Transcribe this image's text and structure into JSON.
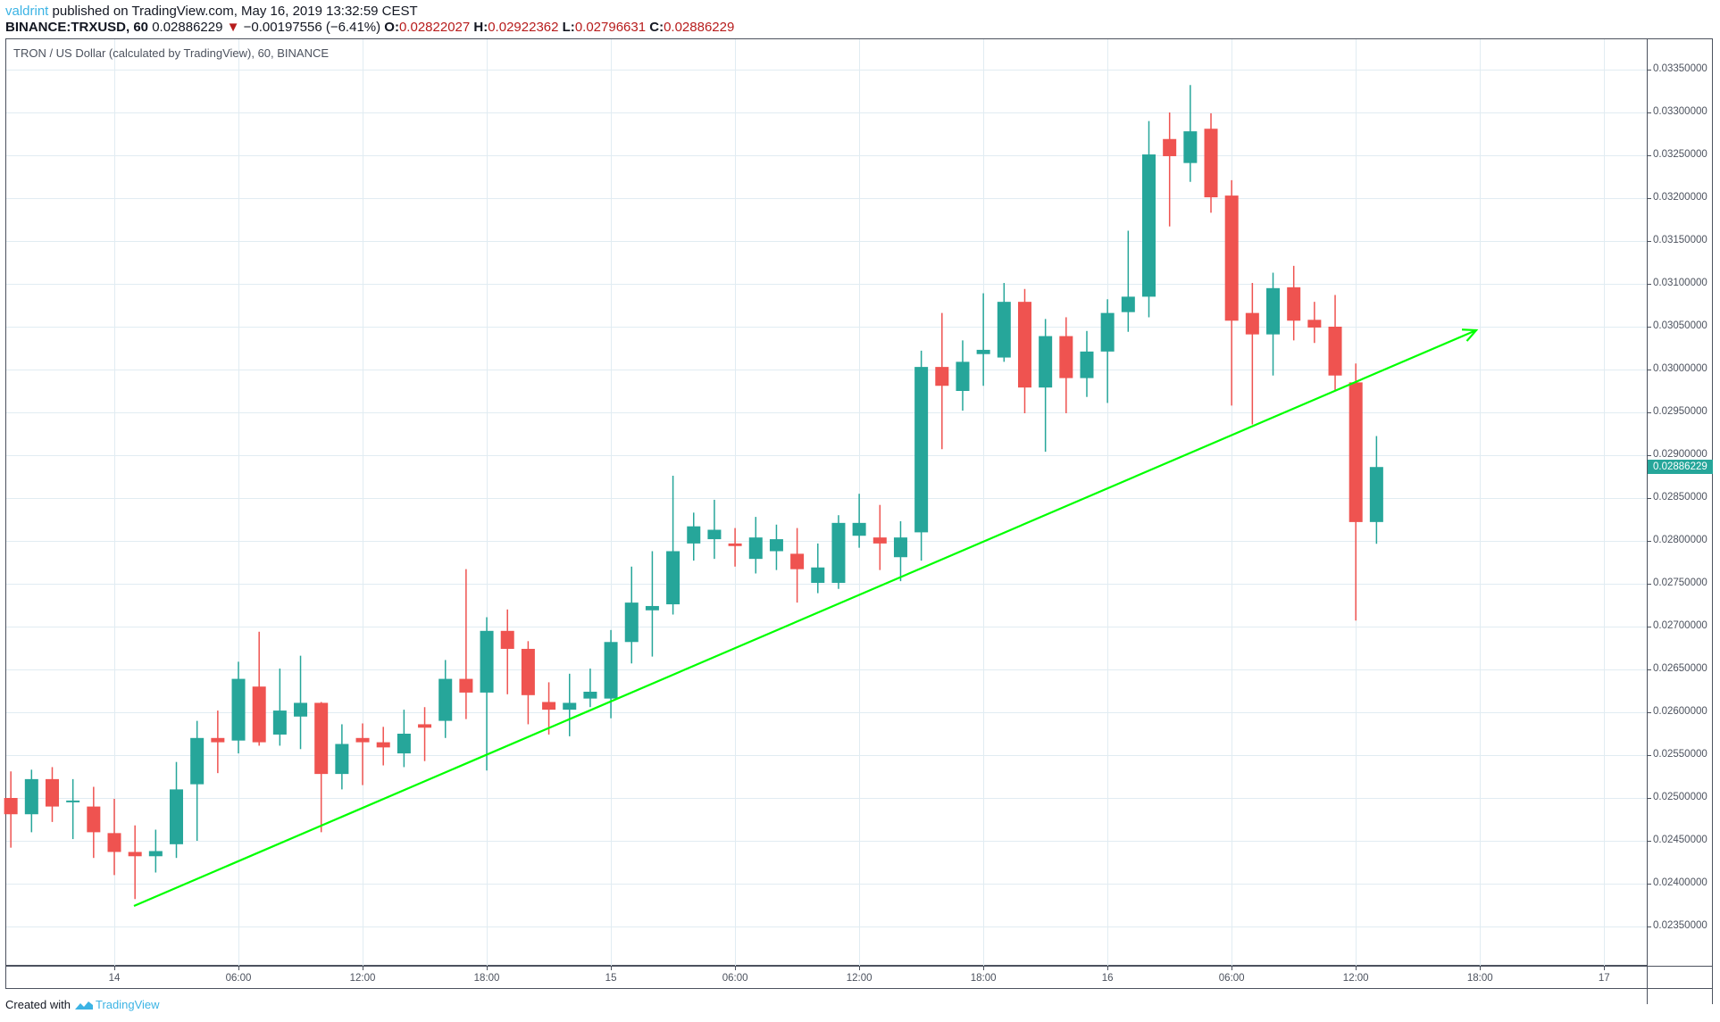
{
  "header": {
    "user": "valdrint",
    "published_text": " published on TradingView.com, May 16, 2019 13:32:59 CEST",
    "symbol": "BINANCE:TRXUSD, 60",
    "last": "0.02886229",
    "change_arrow": "▼",
    "change": "−0.00197556 (−6.41%)",
    "o_label": "O:",
    "o": "0.02822027",
    "h_label": "H:",
    "h": "0.02922362",
    "l_label": "L:",
    "l": "0.02796631",
    "c_label": "C:",
    "c": "0.02886229"
  },
  "chart_title": "TRON / US Dollar (calculated by TradingView), 60, BINANCE",
  "footer": {
    "created_with": "Created with",
    "brand": "TradingView"
  },
  "colors": {
    "up": "#26a69a",
    "down": "#ef5350",
    "trendline": "#00ff00",
    "grid": "#e1ecf2",
    "axis_text": "#4c525e",
    "last_price_bg": "#26a69a"
  },
  "chart_data": {
    "type": "candlestick",
    "title": "TRON / US Dollar (calculated by TradingView), 60, BINANCE",
    "symbol": "BINANCE:TRXUSD",
    "interval": "60",
    "xlabel": "",
    "ylabel": "",
    "ylim": [
      0.0231,
      0.034
    ],
    "grid": true,
    "price_ticks": [
      "0.03350000",
      "0.03300000",
      "0.03250000",
      "0.03200000",
      "0.03150000",
      "0.03100000",
      "0.03050000",
      "0.03000000",
      "0.02950000",
      "0.02900000",
      "0.02850000",
      "0.02800000",
      "0.02750000",
      "0.02700000",
      "0.02650000",
      "0.02600000",
      "0.02550000",
      "0.02500000",
      "0.02450000",
      "0.02400000",
      "0.02350000"
    ],
    "time_ticks": [
      "14",
      "06:00",
      "12:00",
      "18:00",
      "15",
      "06:00",
      "12:00",
      "18:00",
      "16",
      "06:00",
      "12:00",
      "18:00",
      "17"
    ],
    "last_price_label": "0.02886229",
    "first_candle": "2019-05-13 19:00",
    "candles": [
      {
        "t": "05-13 19:00",
        "o": 0.025,
        "h": 0.02531,
        "l": 0.02442,
        "c": 0.02481
      },
      {
        "t": "05-13 20:00",
        "o": 0.02481,
        "h": 0.02533,
        "l": 0.0246,
        "c": 0.02522
      },
      {
        "t": "05-13 21:00",
        "o": 0.02522,
        "h": 0.02536,
        "l": 0.02472,
        "c": 0.0249
      },
      {
        "t": "05-13 22:00",
        "o": 0.02496,
        "h": 0.02522,
        "l": 0.02452,
        "c": 0.02497
      },
      {
        "t": "05-13 23:00",
        "o": 0.0249,
        "h": 0.02513,
        "l": 0.0243,
        "c": 0.0246
      },
      {
        "t": "05-14 00:00",
        "o": 0.02459,
        "h": 0.02499,
        "l": 0.0241,
        "c": 0.02437
      },
      {
        "t": "05-14 01:00",
        "o": 0.02437,
        "h": 0.02468,
        "l": 0.02382,
        "c": 0.02432
      },
      {
        "t": "05-14 02:00",
        "o": 0.02432,
        "h": 0.02463,
        "l": 0.02413,
        "c": 0.02438
      },
      {
        "t": "05-14 03:00",
        "o": 0.02446,
        "h": 0.02542,
        "l": 0.0243,
        "c": 0.0251
      },
      {
        "t": "05-14 04:00",
        "o": 0.02516,
        "h": 0.0259,
        "l": 0.0245,
        "c": 0.0257
      },
      {
        "t": "05-14 05:00",
        "o": 0.0257,
        "h": 0.02602,
        "l": 0.02529,
        "c": 0.02565
      },
      {
        "t": "05-14 06:00",
        "o": 0.02567,
        "h": 0.02659,
        "l": 0.02552,
        "c": 0.02639
      },
      {
        "t": "05-14 07:00",
        "o": 0.0263,
        "h": 0.02694,
        "l": 0.02561,
        "c": 0.02565
      },
      {
        "t": "05-14 08:00",
        "o": 0.02574,
        "h": 0.02651,
        "l": 0.02561,
        "c": 0.02602
      },
      {
        "t": "05-14 09:00",
        "o": 0.02595,
        "h": 0.02666,
        "l": 0.02557,
        "c": 0.02611
      },
      {
        "t": "05-14 10:00",
        "o": 0.02611,
        "h": 0.02612,
        "l": 0.0246,
        "c": 0.02528
      },
      {
        "t": "05-14 11:00",
        "o": 0.02528,
        "h": 0.02586,
        "l": 0.0251,
        "c": 0.02563
      },
      {
        "t": "05-14 12:00",
        "o": 0.0257,
        "h": 0.02587,
        "l": 0.02515,
        "c": 0.02565
      },
      {
        "t": "05-14 13:00",
        "o": 0.02565,
        "h": 0.02583,
        "l": 0.02538,
        "c": 0.02559
      },
      {
        "t": "05-14 14:00",
        "o": 0.02552,
        "h": 0.02603,
        "l": 0.02536,
        "c": 0.02575
      },
      {
        "t": "05-14 15:00",
        "o": 0.02586,
        "h": 0.02606,
        "l": 0.02543,
        "c": 0.02582
      },
      {
        "t": "05-14 16:00",
        "o": 0.0259,
        "h": 0.02661,
        "l": 0.0257,
        "c": 0.02639
      },
      {
        "t": "05-14 17:00",
        "o": 0.02639,
        "h": 0.02767,
        "l": 0.02592,
        "c": 0.02623
      },
      {
        "t": "05-14 18:00",
        "o": 0.02623,
        "h": 0.02711,
        "l": 0.02532,
        "c": 0.02695
      },
      {
        "t": "05-14 19:00",
        "o": 0.02695,
        "h": 0.0272,
        "l": 0.02621,
        "c": 0.02674
      },
      {
        "t": "05-14 20:00",
        "o": 0.02674,
        "h": 0.02683,
        "l": 0.02586,
        "c": 0.0262
      },
      {
        "t": "05-14 21:00",
        "o": 0.02612,
        "h": 0.02635,
        "l": 0.02574,
        "c": 0.02603
      },
      {
        "t": "05-14 22:00",
        "o": 0.02603,
        "h": 0.02645,
        "l": 0.02572,
        "c": 0.02611
      },
      {
        "t": "05-14 23:00",
        "o": 0.02616,
        "h": 0.02651,
        "l": 0.02606,
        "c": 0.02624
      },
      {
        "t": "05-15 00:00",
        "o": 0.02616,
        "h": 0.02696,
        "l": 0.02593,
        "c": 0.02682
      },
      {
        "t": "05-15 01:00",
        "o": 0.02682,
        "h": 0.0277,
        "l": 0.02657,
        "c": 0.02728
      },
      {
        "t": "05-15 02:00",
        "o": 0.02719,
        "h": 0.02788,
        "l": 0.02665,
        "c": 0.02724
      },
      {
        "t": "05-15 03:00",
        "o": 0.02726,
        "h": 0.02876,
        "l": 0.02714,
        "c": 0.02788
      },
      {
        "t": "05-15 04:00",
        "o": 0.02797,
        "h": 0.02833,
        "l": 0.02777,
        "c": 0.02817
      },
      {
        "t": "05-15 05:00",
        "o": 0.02802,
        "h": 0.02848,
        "l": 0.02779,
        "c": 0.02813
      },
      {
        "t": "05-15 06:00",
        "o": 0.02797,
        "h": 0.02815,
        "l": 0.0277,
        "c": 0.02794
      },
      {
        "t": "05-15 07:00",
        "o": 0.02779,
        "h": 0.02828,
        "l": 0.02762,
        "c": 0.02804
      },
      {
        "t": "05-15 08:00",
        "o": 0.02788,
        "h": 0.02819,
        "l": 0.02766,
        "c": 0.02802
      },
      {
        "t": "05-15 09:00",
        "o": 0.02785,
        "h": 0.02815,
        "l": 0.02728,
        "c": 0.02767
      },
      {
        "t": "05-15 10:00",
        "o": 0.02751,
        "h": 0.02797,
        "l": 0.02739,
        "c": 0.02769
      },
      {
        "t": "05-15 11:00",
        "o": 0.02751,
        "h": 0.0283,
        "l": 0.02744,
        "c": 0.02821
      },
      {
        "t": "05-15 12:00",
        "o": 0.02806,
        "h": 0.02855,
        "l": 0.02792,
        "c": 0.02821
      },
      {
        "t": "05-15 13:00",
        "o": 0.02804,
        "h": 0.02842,
        "l": 0.02766,
        "c": 0.02797
      },
      {
        "t": "05-15 14:00",
        "o": 0.02781,
        "h": 0.02823,
        "l": 0.02753,
        "c": 0.02804
      },
      {
        "t": "05-15 15:00",
        "o": 0.0281,
        "h": 0.03022,
        "l": 0.02777,
        "c": 0.03003
      },
      {
        "t": "05-15 16:00",
        "o": 0.03003,
        "h": 0.03066,
        "l": 0.02907,
        "c": 0.02981
      },
      {
        "t": "05-15 17:00",
        "o": 0.02975,
        "h": 0.03034,
        "l": 0.02952,
        "c": 0.03009
      },
      {
        "t": "05-15 18:00",
        "o": 0.03018,
        "h": 0.03089,
        "l": 0.02981,
        "c": 0.03023
      },
      {
        "t": "05-15 19:00",
        "o": 0.03014,
        "h": 0.03101,
        "l": 0.03009,
        "c": 0.03079
      },
      {
        "t": "05-15 20:00",
        "o": 0.03079,
        "h": 0.03094,
        "l": 0.02949,
        "c": 0.02979
      },
      {
        "t": "05-15 21:00",
        "o": 0.02979,
        "h": 0.03059,
        "l": 0.02904,
        "c": 0.03039
      },
      {
        "t": "05-15 22:00",
        "o": 0.03039,
        "h": 0.03061,
        "l": 0.02949,
        "c": 0.0299
      },
      {
        "t": "05-15 23:00",
        "o": 0.0299,
        "h": 0.03045,
        "l": 0.02968,
        "c": 0.03021
      },
      {
        "t": "05-16 00:00",
        "o": 0.03021,
        "h": 0.03082,
        "l": 0.02961,
        "c": 0.03066
      },
      {
        "t": "05-16 01:00",
        "o": 0.03067,
        "h": 0.03162,
        "l": 0.03044,
        "c": 0.03085
      },
      {
        "t": "05-16 02:00",
        "o": 0.03085,
        "h": 0.0329,
        "l": 0.03061,
        "c": 0.03251
      },
      {
        "t": "05-16 03:00",
        "o": 0.03269,
        "h": 0.033,
        "l": 0.03167,
        "c": 0.03249
      },
      {
        "t": "05-16 04:00",
        "o": 0.03241,
        "h": 0.03332,
        "l": 0.03219,
        "c": 0.03278
      },
      {
        "t": "05-16 05:00",
        "o": 0.03281,
        "h": 0.03299,
        "l": 0.03183,
        "c": 0.03201
      },
      {
        "t": "05-16 06:00",
        "o": 0.03203,
        "h": 0.03221,
        "l": 0.02958,
        "c": 0.03057
      },
      {
        "t": "05-16 07:00",
        "o": 0.03066,
        "h": 0.03101,
        "l": 0.02936,
        "c": 0.03041
      },
      {
        "t": "05-16 08:00",
        "o": 0.03041,
        "h": 0.03113,
        "l": 0.02993,
        "c": 0.03095
      },
      {
        "t": "05-16 09:00",
        "o": 0.03096,
        "h": 0.03121,
        "l": 0.03034,
        "c": 0.03057
      },
      {
        "t": "05-16 10:00",
        "o": 0.03058,
        "h": 0.03079,
        "l": 0.03031,
        "c": 0.03049
      },
      {
        "t": "05-16 11:00",
        "o": 0.0305,
        "h": 0.03087,
        "l": 0.02975,
        "c": 0.02993
      },
      {
        "t": "05-16 12:00",
        "o": 0.02985,
        "h": 0.03007,
        "l": 0.02707,
        "c": 0.02822
      },
      {
        "t": "05-16 13:00",
        "o": 0.02822027,
        "h": 0.02922362,
        "l": 0.02796631,
        "c": 0.02886229
      }
    ],
    "annotations": [
      {
        "type": "trendline_arrow",
        "color": "#00ff00",
        "from": {
          "t": "05-14 01:00",
          "price": 0.02381
        },
        "to": {
          "t": "05-16 18:00",
          "price": 0.03048
        }
      }
    ]
  }
}
